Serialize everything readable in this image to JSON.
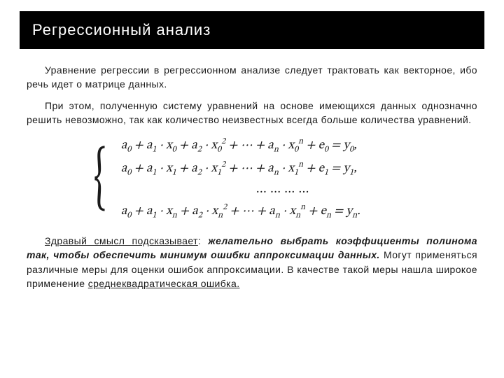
{
  "title": "Регрессионный анализ",
  "paragraph1": "Уравнение регрессии в регрессионном анализе следует трактовать как векторное, ибо речь идет о матрице данных.",
  "paragraph2": "При этом, полученную систему уравнений на основе имеющихся данных однозначно решить невозможно, так как количество неизвестных всегда больше количества уравнений.",
  "equation": {
    "lines": [
      "a₀ + a₁ · x₀ + a₂ · x₀² + ⋯ + aₙ · x₀ⁿ + e₀ = y₀,",
      "a₀ + a₁ · x₁ + a₂ · x₁² + ⋯ + aₙ · x₁ⁿ + e₁ = y₁,",
      "… … … …",
      "a₀ + a₁ · xₙ + a₂ · xₙ² + ⋯ + aₙ · xₙⁿ + eₙ = yₙ."
    ]
  },
  "conclusion": {
    "lead_underlined": "Здравый смысл подсказывает",
    "colon": ": ",
    "bold_italic": "желательно выбрать коэффициенты полинома так, чтобы обеспечить минимум ошибки аппроксимации данных.",
    "rest1": " Могут применяться различные меры для оценки ошибок аппроксимации. В качестве такой меры нашла широкое применение ",
    "tail_underlined": "среднеквадратическая ошибка."
  },
  "colors": {
    "title_bg": "#000000",
    "title_fg": "#ffffff",
    "page_bg": "#ffffff",
    "text": "#1a1a1a"
  },
  "fonts": {
    "body_size_pt": 10,
    "title_size_pt": 17,
    "equation_family": "Cambria Math"
  }
}
